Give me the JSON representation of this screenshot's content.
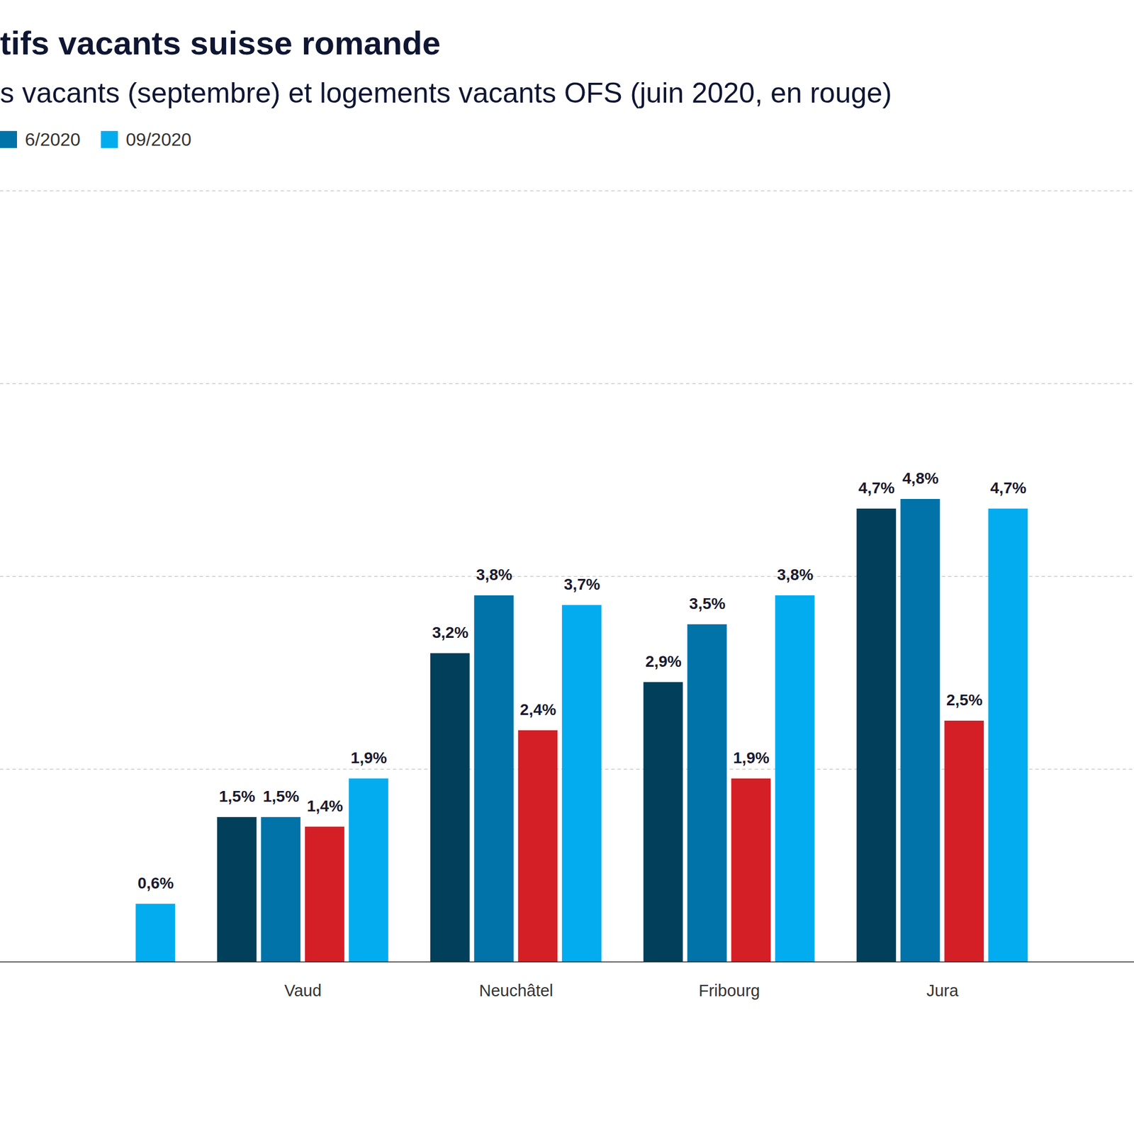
{
  "chart_data": {
    "type": "bar",
    "title": "tifs vacants suisse romande",
    "subtitle": "s vacants (septembre) et logements vacants OFS (juin 2020, en rouge)",
    "categories": [
      null,
      "Vaud",
      "Neuchâtel",
      "Fribourg",
      "Jura"
    ],
    "series": [
      {
        "name": null,
        "color": "#023f5a",
        "values": [
          null,
          1.5,
          3.2,
          2.9,
          4.7
        ],
        "value_labels": [
          null,
          "1,5%",
          "3,2%",
          "2,9%",
          "4,7%"
        ]
      },
      {
        "name": "6/2020",
        "color": "#0173a8",
        "values": [
          null,
          1.5,
          3.8,
          3.5,
          4.8
        ],
        "value_labels": [
          null,
          "1,5%",
          "3,8%",
          "3,5%",
          "4,8%"
        ]
      },
      {
        "name": null,
        "color": "#d51f26",
        "values": [
          null,
          1.4,
          2.4,
          1.9,
          2.5
        ],
        "value_labels": [
          null,
          "1,4%",
          "2,4%",
          "1,9%",
          "2,5%"
        ]
      },
      {
        "name": "09/2020",
        "color": "#03acef",
        "values": [
          0.6,
          1.9,
          3.7,
          3.8,
          4.7
        ],
        "value_labels": [
          "0,6%",
          "1,9%",
          "3,7%",
          "3,8%",
          "4,7%"
        ]
      }
    ],
    "ylim": [
      0,
      8
    ],
    "yticks": [
      0,
      2,
      4,
      6,
      8
    ],
    "grid": true,
    "data_labels": true,
    "tick_labels": "x"
  }
}
